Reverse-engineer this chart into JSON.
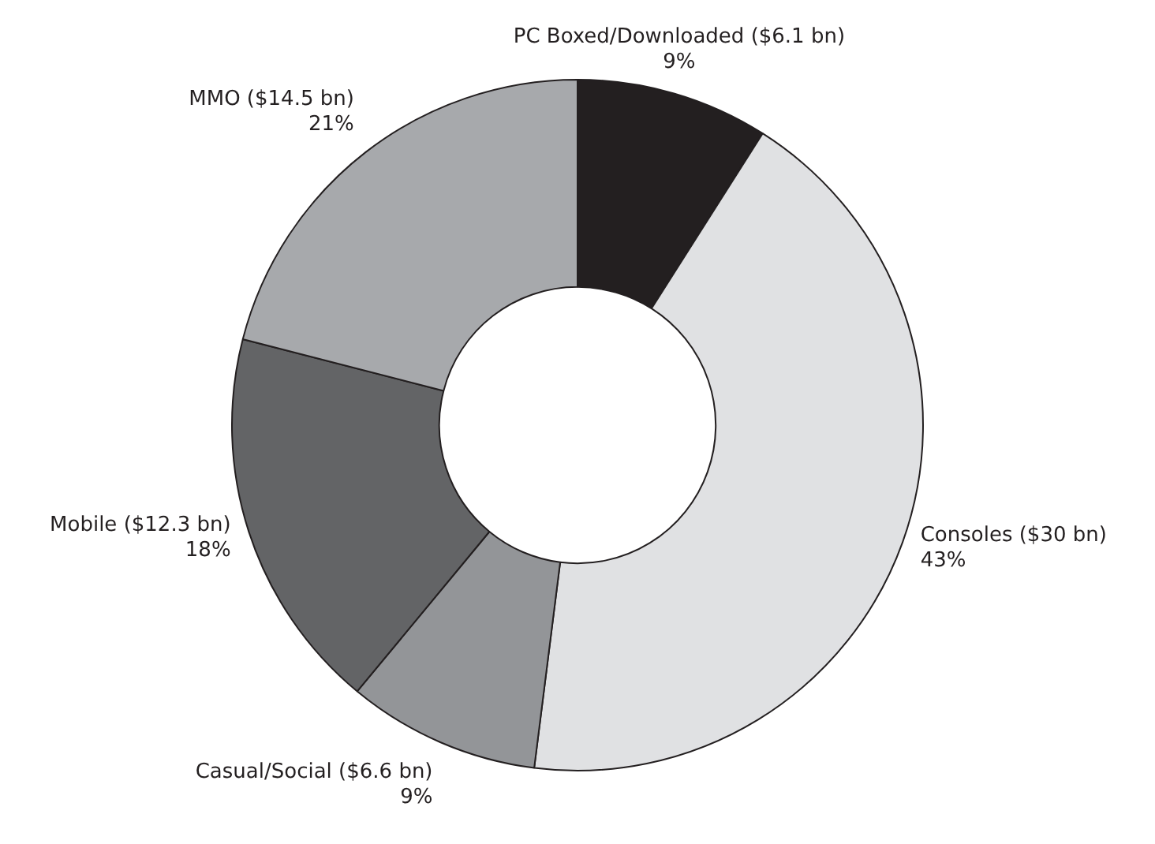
{
  "chart_data": {
    "type": "donut",
    "categories": [
      "PC Boxed/Downloaded ($6.1 bn)",
      "Consoles ($30 bn)",
      "Casual/Social ($6.6 bn)",
      "Mobile ($12.3 bn)",
      "MMO ($14.5 bn)"
    ],
    "values": [
      9,
      43,
      9,
      18,
      21
    ],
    "value_labels": [
      "9%",
      "43%",
      "9%",
      "18%",
      "21%"
    ],
    "colors": [
      "#231f20",
      "#e0e1e3",
      "#939598",
      "#636466",
      "#a7a9ac"
    ],
    "legend": false
  }
}
